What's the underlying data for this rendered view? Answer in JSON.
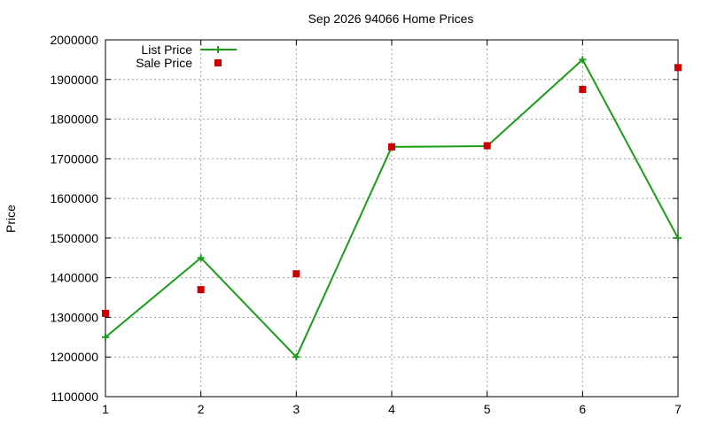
{
  "chart_data": {
    "type": "line",
    "title": "Sep 2026 94066 Home Prices",
    "xlabel": "",
    "ylabel": "Price",
    "x": [
      1,
      2,
      3,
      4,
      5,
      6,
      7
    ],
    "xlim": [
      1,
      7
    ],
    "ylim": [
      1100000,
      2000000
    ],
    "yticks": [
      1100000,
      1200000,
      1300000,
      1400000,
      1500000,
      1600000,
      1700000,
      1800000,
      1900000,
      2000000
    ],
    "xticks": [
      1,
      2,
      3,
      4,
      5,
      6,
      7
    ],
    "grid": true,
    "legend_position": "top-left",
    "series": [
      {
        "name": "List Price",
        "style": "line-with-plus-markers",
        "color": "#1a9e1a",
        "values": [
          1250000,
          1450000,
          1200000,
          1730000,
          1732000,
          1950000,
          1500000
        ]
      },
      {
        "name": "Sale Price",
        "style": "square-markers",
        "color": "#cc0000",
        "values": [
          1310000,
          1370000,
          1410000,
          1730000,
          1733000,
          1875000,
          1930000
        ]
      }
    ]
  }
}
